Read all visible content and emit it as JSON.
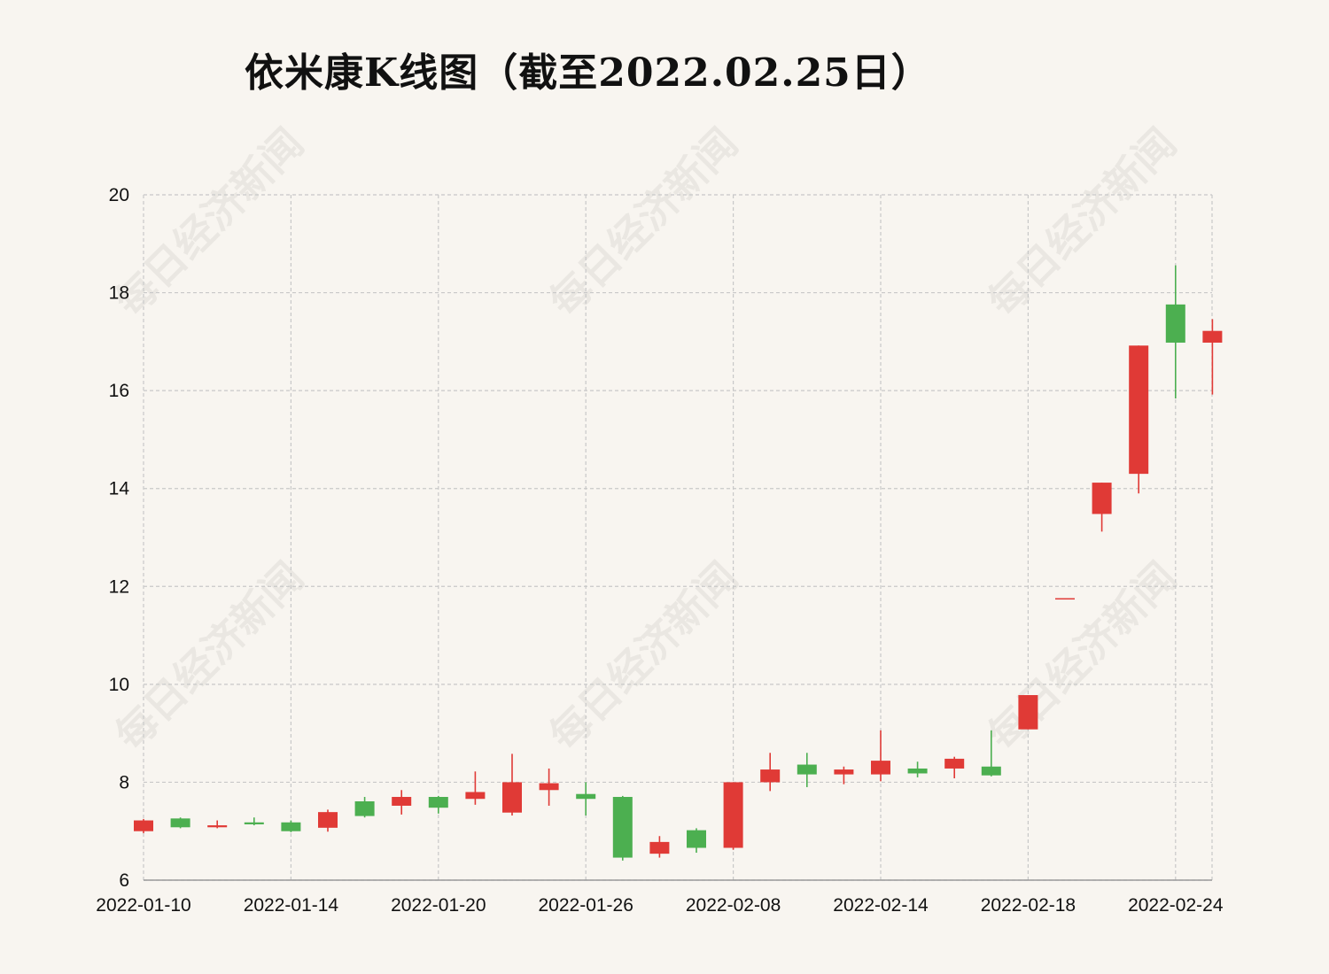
{
  "chart_data": {
    "type": "candlestick",
    "title": "依米康K线图（截至2022.02.25日）",
    "watermark": "每日经济新闻",
    "xlabel": "",
    "ylabel": "",
    "ylim": [
      6,
      20
    ],
    "yticks": [
      6,
      8,
      10,
      12,
      14,
      16,
      18,
      20
    ],
    "grid": true,
    "x_tick_labels": [
      "2022-01-10",
      "2022-01-14",
      "2022-01-20",
      "2022-01-26",
      "2022-02-08",
      "2022-02-14",
      "2022-02-18",
      "2022-02-24"
    ],
    "x_tick_indices": [
      0,
      4,
      8,
      12,
      16,
      20,
      24,
      28
    ],
    "colors": {
      "up": "#e03a36",
      "down": "#4caf50"
    },
    "candles": [
      {
        "date": "2022-01-10",
        "open": 7.0,
        "close": 7.22,
        "low": 6.96,
        "high": 7.25
      },
      {
        "date": "2022-01-11",
        "open": 7.26,
        "close": 7.08,
        "low": 7.06,
        "high": 7.28
      },
      {
        "date": "2022-01-12",
        "open": 7.08,
        "close": 7.12,
        "low": 7.06,
        "high": 7.22
      },
      {
        "date": "2022-01-13",
        "open": 7.18,
        "close": 7.14,
        "low": 7.12,
        "high": 7.28
      },
      {
        "date": "2022-01-14",
        "open": 7.18,
        "close": 7.0,
        "low": 6.98,
        "high": 7.22
      },
      {
        "date": "2022-01-17",
        "open": 7.07,
        "close": 7.39,
        "low": 6.99,
        "high": 7.44
      },
      {
        "date": "2022-01-18",
        "open": 7.61,
        "close": 7.31,
        "low": 7.28,
        "high": 7.7
      },
      {
        "date": "2022-01-19",
        "open": 7.52,
        "close": 7.7,
        "low": 7.34,
        "high": 7.84
      },
      {
        "date": "2022-01-20",
        "open": 7.7,
        "close": 7.48,
        "low": 7.36,
        "high": 7.72
      },
      {
        "date": "2022-01-21",
        "open": 7.66,
        "close": 7.8,
        "low": 7.54,
        "high": 8.22
      },
      {
        "date": "2022-01-24",
        "open": 7.38,
        "close": 8.0,
        "low": 7.32,
        "high": 8.58
      },
      {
        "date": "2022-01-25",
        "open": 7.84,
        "close": 7.98,
        "low": 7.52,
        "high": 8.28
      },
      {
        "date": "2022-01-26",
        "open": 7.76,
        "close": 7.66,
        "low": 7.32,
        "high": 8.0
      },
      {
        "date": "2022-01-27",
        "open": 7.7,
        "close": 6.46,
        "low": 6.4,
        "high": 7.72
      },
      {
        "date": "2022-01-28",
        "open": 6.54,
        "close": 6.78,
        "low": 6.46,
        "high": 6.9
      },
      {
        "date": "2022-02-07",
        "open": 7.02,
        "close": 6.66,
        "low": 6.56,
        "high": 7.06
      },
      {
        "date": "2022-02-08",
        "open": 6.66,
        "close": 8.0,
        "low": 6.62,
        "high": 8.0
      },
      {
        "date": "2022-02-09",
        "open": 8.0,
        "close": 8.26,
        "low": 7.82,
        "high": 8.6
      },
      {
        "date": "2022-02-10",
        "open": 8.36,
        "close": 8.16,
        "low": 7.9,
        "high": 8.6
      },
      {
        "date": "2022-02-11",
        "open": 8.16,
        "close": 8.26,
        "low": 7.96,
        "high": 8.32
      },
      {
        "date": "2022-02-14",
        "open": 8.16,
        "close": 8.44,
        "low": 8.02,
        "high": 9.06
      },
      {
        "date": "2022-02-15",
        "open": 8.28,
        "close": 8.18,
        "low": 8.1,
        "high": 8.42
      },
      {
        "date": "2022-02-16",
        "open": 8.28,
        "close": 8.48,
        "low": 8.08,
        "high": 8.52
      },
      {
        "date": "2022-02-17",
        "open": 8.32,
        "close": 8.14,
        "low": 8.12,
        "high": 9.06
      },
      {
        "date": "2022-02-18",
        "open": 9.08,
        "close": 9.78,
        "low": 9.08,
        "high": 9.78
      },
      {
        "date": "2022-02-21",
        "open": 11.76,
        "close": 11.76,
        "low": 11.76,
        "high": 11.76
      },
      {
        "date": "2022-02-22",
        "open": 13.48,
        "close": 14.12,
        "low": 13.12,
        "high": 14.12
      },
      {
        "date": "2022-02-23",
        "open": 14.3,
        "close": 16.92,
        "low": 13.9,
        "high": 16.92
      },
      {
        "date": "2022-02-24",
        "open": 17.76,
        "close": 16.98,
        "low": 15.84,
        "high": 18.56
      },
      {
        "date": "2022-02-25",
        "open": 16.98,
        "close": 17.22,
        "low": 15.92,
        "high": 17.46
      }
    ]
  }
}
